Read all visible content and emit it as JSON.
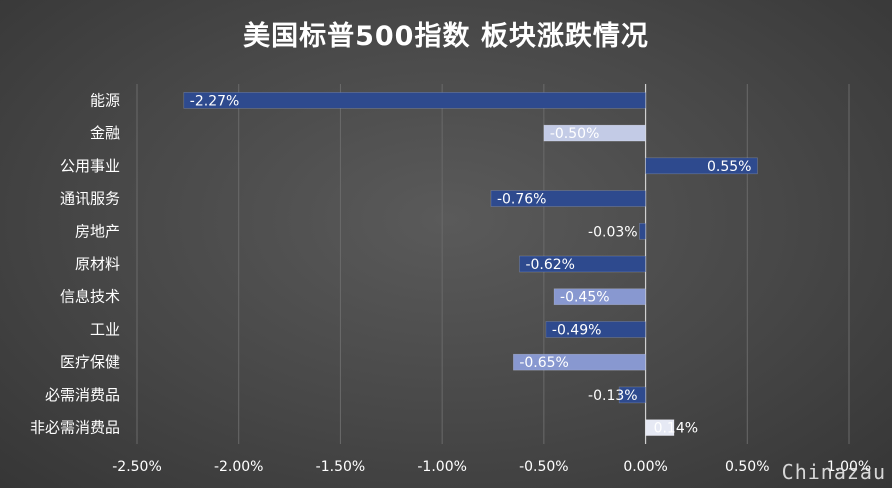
{
  "chart_data": {
    "type": "bar",
    "orientation": "horizontal",
    "title": "美国标普500指数 板块涨跌情况",
    "categories": [
      "能源",
      "金融",
      "公用事业",
      "通讯服务",
      "房地产",
      "原材料",
      "信息技术",
      "工业",
      "医疗保健",
      "必需消费品",
      "非必需消费品"
    ],
    "values": [
      -2.27,
      -0.5,
      0.55,
      -0.76,
      -0.03,
      -0.62,
      -0.45,
      -0.49,
      -0.65,
      -0.13,
      0.14
    ],
    "data_labels": [
      "-2.27%",
      "-0.50%",
      "0.55%",
      "-0.76%",
      "-0.03%",
      "-0.62%",
      "-0.45%",
      "-0.49%",
      "-0.65%",
      "-0.13%",
      "0.14%"
    ],
    "bar_colors": [
      "#2e4a8e",
      "#c3cbe6",
      "#2e4a8e",
      "#2e4a8e",
      "#2e4a8e",
      "#2e4a8e",
      "#8898d0",
      "#2e4a8e",
      "#8898d0",
      "#2e4a8e",
      "#e6e9f4"
    ],
    "xlim": [
      -2.5,
      1.0
    ],
    "xticks": [
      -2.5,
      -2.0,
      -1.5,
      -1.0,
      -0.5,
      0.0,
      0.5,
      1.0
    ],
    "xtick_labels": [
      "-2.50%",
      "-2.00%",
      "-1.50%",
      "-1.00%",
      "-0.50%",
      "0.00%",
      "0.50%",
      "1.00%"
    ],
    "grid": true,
    "xlabel": "",
    "ylabel": ""
  },
  "watermark": "Chinazau"
}
